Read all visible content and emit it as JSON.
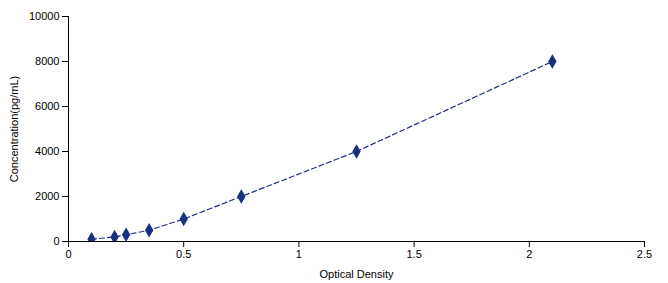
{
  "chart_data": {
    "type": "line",
    "x": [
      0.1,
      0.2,
      0.25,
      0.35,
      0.5,
      0.75,
      1.25,
      2.1
    ],
    "values": [
      100,
      200,
      300,
      500,
      1000,
      2000,
      4000,
      8000
    ],
    "color": "#1a3080",
    "marker": "diamond",
    "line_style": "dashed",
    "xlabel": "Optical Density",
    "ylabel": "Concentration(pg/mL)",
    "xlim": [
      0,
      2.5
    ],
    "ylim": [
      0,
      10000
    ],
    "xticks": [
      0,
      0.5,
      1,
      1.5,
      2,
      2.5
    ],
    "yticks": [
      0,
      2000,
      4000,
      6000,
      8000,
      10000
    ],
    "grid": false
  }
}
